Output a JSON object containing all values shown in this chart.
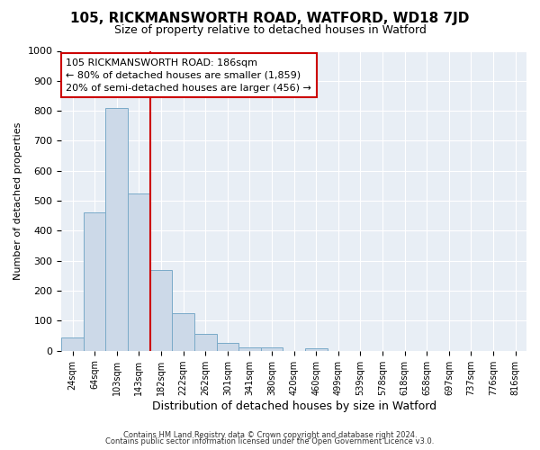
{
  "title1": "105, RICKMANSWORTH ROAD, WATFORD, WD18 7JD",
  "title2": "Size of property relative to detached houses in Watford",
  "xlabel": "Distribution of detached houses by size in Watford",
  "ylabel": "Number of detached properties",
  "footer1": "Contains HM Land Registry data © Crown copyright and database right 2024.",
  "footer2": "Contains public sector information licensed under the Open Government Licence v3.0.",
  "categories": [
    "24sqm",
    "64sqm",
    "103sqm",
    "143sqm",
    "182sqm",
    "222sqm",
    "262sqm",
    "301sqm",
    "341sqm",
    "380sqm",
    "420sqm",
    "460sqm",
    "499sqm",
    "539sqm",
    "578sqm",
    "618sqm",
    "658sqm",
    "697sqm",
    "737sqm",
    "776sqm",
    "816sqm"
  ],
  "values": [
    45,
    460,
    810,
    525,
    270,
    125,
    55,
    25,
    10,
    12,
    0,
    8,
    0,
    0,
    0,
    0,
    0,
    0,
    0,
    0,
    0
  ],
  "bar_color": "#ccd9e8",
  "bar_edge_color": "#7aaac8",
  "red_line_index": 4,
  "annotation_text": "105 RICKMANSWORTH ROAD: 186sqm\n← 80% of detached houses are smaller (1,859)\n20% of semi-detached houses are larger (456) →",
  "annotation_box_facecolor": "#ffffff",
  "annotation_box_edgecolor": "#cc0000",
  "ylim": [
    0,
    1000
  ],
  "yticks": [
    0,
    100,
    200,
    300,
    400,
    500,
    600,
    700,
    800,
    900,
    1000
  ],
  "background_color": "#ffffff",
  "plot_bg_color": "#e8eef5",
  "grid_color": "#ffffff"
}
